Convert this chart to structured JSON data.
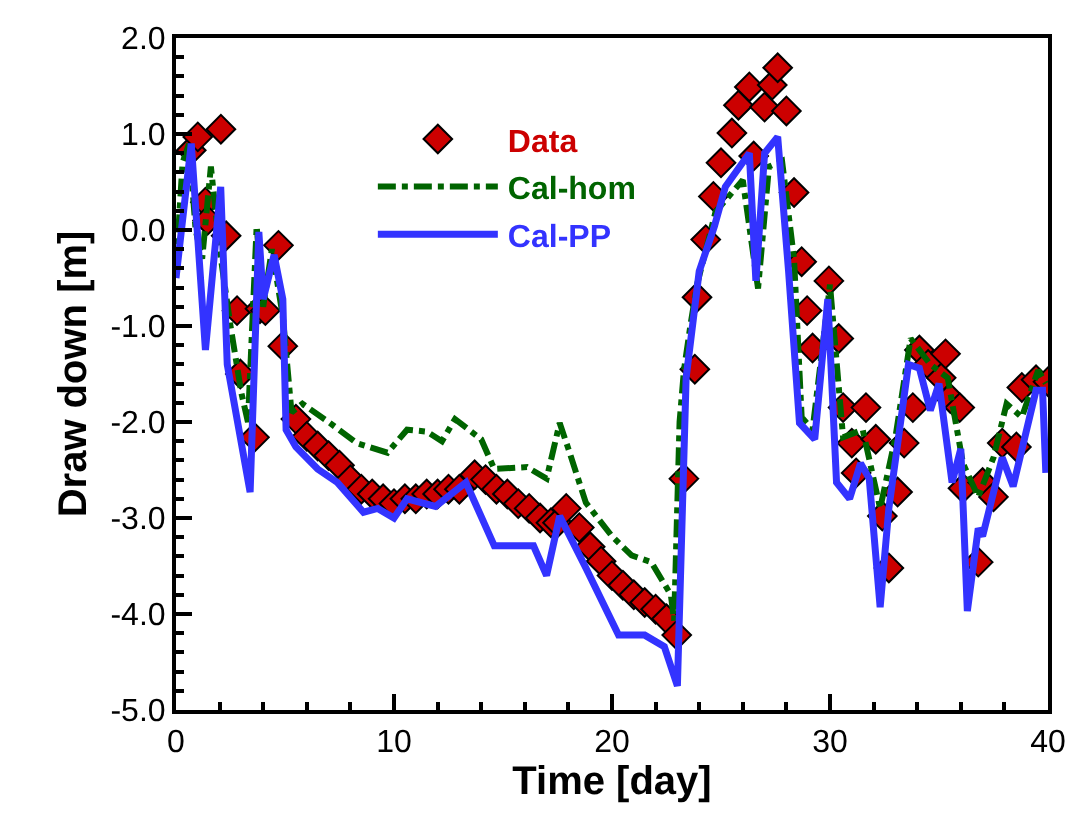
{
  "chart_data": {
    "type": "line",
    "xlabel": "Time [day]",
    "ylabel": "Draw down [m]",
    "xlim": [
      0,
      40
    ],
    "xticks": [
      0,
      10,
      20,
      30,
      40
    ],
    "ylim": [
      -5,
      2
    ],
    "yticks": [
      {
        "value": -5,
        "label": "-5.0"
      },
      {
        "value": -4,
        "label": "-4.0"
      },
      {
        "value": -3,
        "label": "-3.0"
      },
      {
        "value": -2,
        "label": "-2.0"
      },
      {
        "value": -1,
        "label": "-1.0"
      },
      {
        "value": 0,
        "label": "0.0"
      },
      {
        "value": 1,
        "label": "1.0"
      },
      {
        "value": 2,
        "label": "2.0"
      }
    ],
    "grid": false,
    "legend": "top left",
    "series": [
      {
        "name": "Data",
        "type": "scatter",
        "marker": "diamond",
        "color": "#cc0000",
        "x": [
          0.7,
          1.0,
          1.35,
          1.45,
          2.06,
          2.3,
          2.8,
          2.95,
          3.6,
          3.85,
          4.1,
          4.7,
          4.9,
          5.5,
          6.0,
          6.5,
          7.0,
          7.5,
          8.0,
          8.5,
          9.0,
          9.5,
          10.0,
          10.5,
          11.0,
          11.5,
          12.0,
          12.5,
          13.0,
          13.7,
          14.2,
          14.7,
          15.2,
          15.7,
          16.2,
          16.7,
          17.2,
          17.5,
          17.9,
          18.5,
          19.0,
          19.5,
          20.0,
          20.5,
          21.0,
          21.5,
          22.0,
          22.5,
          22.97,
          23.3,
          23.8,
          23.9,
          24.3,
          24.65,
          25.0,
          25.5,
          25.8,
          26.3,
          26.5,
          27.0,
          27.35,
          27.6,
          28.0,
          28.35,
          28.7,
          28.95,
          29.2,
          29.95,
          30.4,
          30.6,
          31.0,
          31.2,
          31.65,
          32.1,
          32.4,
          32.7,
          33.1,
          33.4,
          33.8,
          34.1,
          34.5,
          35.1,
          35.3,
          35.5,
          35.95,
          36.1,
          36.8,
          37.0,
          37.5,
          37.9,
          38.55,
          38.8,
          39.45,
          40.0
        ],
        "values": [
          0.83,
          0.97,
          0.29,
          0.1,
          1.05,
          -0.06,
          -0.84,
          -1.5,
          -2.16,
          -0.82,
          -0.84,
          -0.16,
          -1.21,
          -1.97,
          -2.15,
          -2.25,
          -2.35,
          -2.45,
          -2.6,
          -2.7,
          -2.75,
          -2.8,
          -2.85,
          -2.8,
          -2.8,
          -2.75,
          -2.75,
          -2.7,
          -2.7,
          -2.55,
          -2.6,
          -2.7,
          -2.75,
          -2.85,
          -2.9,
          -3.0,
          -3.05,
          -3.05,
          -2.9,
          -3.1,
          -3.3,
          -3.45,
          -3.6,
          -3.7,
          -3.8,
          -3.88,
          -3.95,
          -4.05,
          -4.22,
          -2.59,
          -1.45,
          -0.7,
          -0.1,
          0.35,
          0.7,
          1.01,
          1.3,
          1.49,
          0.77,
          1.28,
          1.51,
          1.69,
          1.24,
          0.39,
          -0.33,
          -0.84,
          -1.23,
          -0.53,
          -1.13,
          -1.85,
          -2.22,
          -2.53,
          -1.85,
          -2.18,
          -2.98,
          -3.52,
          -2.73,
          -2.22,
          -1.85,
          -1.25,
          -1.4,
          -1.54,
          -1.29,
          -1.75,
          -1.85,
          -2.69,
          -3.46,
          -2.63,
          -2.78,
          -2.22,
          -2.26,
          -1.64,
          -1.56,
          -1.58
        ]
      },
      {
        "name": "Cal-hom",
        "marker": "none",
        "line_style": "dashed",
        "color": "#006400",
        "x": [
          0,
          0.3,
          0.6,
          0.9,
          1.2,
          1.6,
          2.0,
          2.5,
          3.0,
          3.3,
          3.7,
          4.0,
          4.4,
          4.9,
          5.3,
          5.8,
          7.0,
          8.3,
          9.7,
          10.6,
          11.5,
          12.2,
          12.8,
          14.0,
          14.6,
          16.1,
          17.0,
          17.6,
          18.0,
          18.8,
          20.0,
          20.9,
          21.8,
          22.7,
          22.85,
          23.1,
          23.3,
          23.6,
          23.9,
          24.75,
          26.0,
          26.7,
          27.2,
          27.8,
          28.35,
          28.7,
          29.2,
          30.0,
          30.6,
          31.5,
          32.3,
          33.0,
          33.7,
          34.6,
          35.4,
          36.1,
          36.8,
          37.5,
          38.1,
          38.8,
          39.55,
          39.9
        ],
        "values": [
          -0.4,
          0.7,
          0.9,
          0.0,
          -0.3,
          0.66,
          -0.2,
          -1.0,
          -1.7,
          -2.0,
          0.04,
          -0.8,
          -0.2,
          -0.9,
          -1.9,
          -1.81,
          -2.0,
          -2.22,
          -2.32,
          -2.08,
          -2.1,
          -2.2,
          -1.97,
          -2.18,
          -2.49,
          -2.47,
          -2.59,
          -2.01,
          -2.28,
          -2.84,
          -3.19,
          -3.39,
          -3.46,
          -3.8,
          -4.07,
          -2.0,
          -1.46,
          -0.99,
          -0.57,
          0.19,
          0.52,
          -0.61,
          0.66,
          0.72,
          -0.3,
          -1.95,
          -2.08,
          -0.57,
          -2.16,
          -2.08,
          -2.9,
          -2.16,
          -1.13,
          -1.4,
          -1.54,
          -2.43,
          -2.78,
          -2.37,
          -1.81,
          -1.95,
          -1.46,
          -1.6
        ]
      },
      {
        "name": "Cal-PP",
        "marker": "none",
        "line_style": "solid",
        "color": "#3333ff",
        "x": [
          0,
          0.7,
          1.35,
          2.05,
          2.35,
          3.4,
          3.8,
          4.0,
          4.5,
          4.9,
          5.05,
          5.5,
          6.5,
          7.4,
          8.6,
          9.25,
          10.0,
          10.6,
          11.9,
          13.3,
          14.6,
          16.4,
          17.0,
          17.6,
          18.8,
          20.3,
          20.9,
          21.5,
          22.4,
          23.0,
          23.4,
          24.0,
          24.7,
          25.2,
          26.3,
          26.6,
          27.0,
          27.6,
          28.1,
          28.6,
          29.3,
          29.9,
          30.3,
          30.9,
          31.4,
          31.8,
          32.3,
          32.7,
          33.6,
          34.1,
          34.6,
          35.0,
          35.6,
          36.0,
          36.3,
          36.8,
          37.0,
          37.9,
          38.4,
          39.45,
          39.75,
          39.9
        ],
        "values": [
          -0.5,
          0.9,
          -1.25,
          0.45,
          -1.4,
          -2.73,
          -0.02,
          -0.72,
          -0.26,
          -0.72,
          -2.08,
          -2.26,
          -2.49,
          -2.63,
          -2.94,
          -2.9,
          -3.0,
          -2.8,
          -2.88,
          -2.63,
          -3.29,
          -3.29,
          -3.6,
          -2.98,
          -3.52,
          -4.22,
          -4.22,
          -4.22,
          -4.34,
          -4.75,
          -1.54,
          -0.43,
          0.04,
          0.45,
          0.8,
          -0.53,
          0.8,
          0.97,
          -0.43,
          -2.01,
          -2.18,
          -0.72,
          -2.63,
          -2.8,
          -2.43,
          -2.59,
          -3.93,
          -2.9,
          -1.4,
          -1.44,
          -1.88,
          -1.6,
          -2.63,
          -2.28,
          -3.97,
          -3.11,
          -3.19,
          -2.37,
          -2.67,
          -1.67,
          -1.67,
          -2.53
        ]
      }
    ]
  }
}
